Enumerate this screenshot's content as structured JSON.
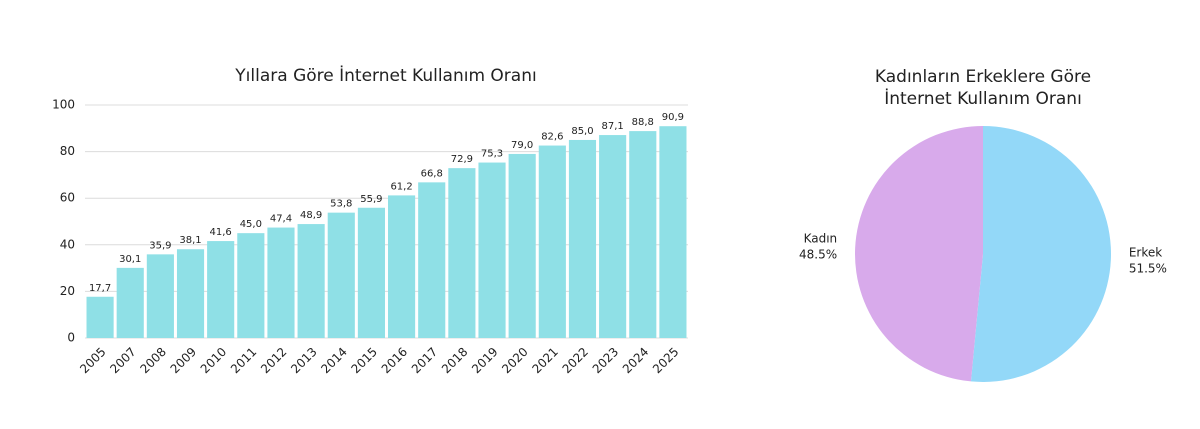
{
  "chart_data": [
    {
      "type": "bar",
      "title": "Yıllara Göre İnternet Kullanım Oranı",
      "categories": [
        "2005",
        "2007",
        "2008",
        "2009",
        "2010",
        "2011",
        "2012",
        "2013",
        "2014",
        "2015",
        "2016",
        "2017",
        "2018",
        "2019",
        "2020",
        "2021",
        "2022",
        "2023",
        "2024",
        "2025"
      ],
      "values": [
        17.7,
        30.1,
        35.9,
        38.1,
        41.6,
        45.0,
        47.4,
        48.9,
        53.8,
        55.9,
        61.2,
        66.8,
        72.9,
        75.3,
        79.0,
        82.6,
        85.0,
        87.1,
        88.8,
        90.9
      ],
      "value_labels": [
        "17,7",
        "30,1",
        "35,9",
        "38,1",
        "41,6",
        "45,0",
        "47,4",
        "48,9",
        "53,8",
        "55,9",
        "61,2",
        "66,8",
        "72,9",
        "75,3",
        "79,0",
        "82,6",
        "85,0",
        "87,1",
        "88,8",
        "90,9"
      ],
      "color": "#8fe0e6",
      "ylim": [
        0,
        100
      ],
      "yticks": [
        0,
        20,
        40,
        60,
        80,
        100
      ],
      "grid": true
    },
    {
      "type": "pie",
      "title": "Kadınların Erkeklere Göre İnternet Kullanım Oranı",
      "categories": [
        "Erkek",
        "Kadın"
      ],
      "values": [
        51.5,
        48.5
      ],
      "value_labels": [
        "51.5%",
        "48.5%"
      ],
      "colors": [
        "#93d8f8",
        "#d8aaeb"
      ]
    }
  ]
}
